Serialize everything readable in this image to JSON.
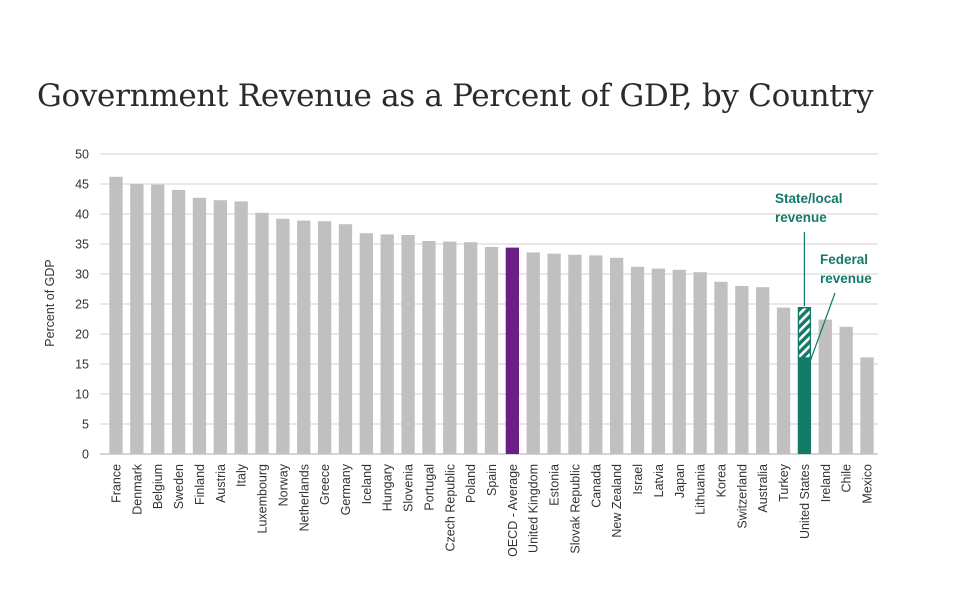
{
  "chart_data": {
    "type": "bar",
    "title": "Government Revenue as a Percent of GDP, by Country",
    "ylabel": "Percent of GDP",
    "xlabel": "",
    "ylim": [
      0,
      50
    ],
    "yticks": [
      0,
      5,
      10,
      15,
      20,
      25,
      30,
      35,
      40,
      45,
      50
    ],
    "grid": true,
    "legend": "none",
    "categories": [
      "France",
      "Denmark",
      "Belgium",
      "Sweden",
      "Finland",
      "Austria",
      "Italy",
      "Luxembourg",
      "Norway",
      "Netherlands",
      "Greece",
      "Germany",
      "Iceland",
      "Hungary",
      "Slovenia",
      "Portugal",
      "Czech Republic",
      "Poland",
      "Spain",
      "OECD - Average",
      "United Kingdom",
      "Estonia",
      "Slovak Republic",
      "Canada",
      "New Zealand",
      "Israel",
      "Latvia",
      "Japan",
      "Lithuania",
      "Korea",
      "Switzerland",
      "Australia",
      "Turkey",
      "United States",
      "Ireland",
      "Chile",
      "Mexico"
    ],
    "values": [
      46.2,
      45.0,
      44.9,
      44.0,
      42.7,
      42.3,
      42.1,
      40.2,
      39.2,
      38.9,
      38.8,
      38.3,
      36.8,
      36.6,
      36.5,
      35.5,
      35.4,
      35.3,
      34.5,
      34.4,
      33.6,
      33.4,
      33.2,
      33.1,
      32.7,
      31.2,
      30.9,
      30.7,
      30.3,
      28.7,
      28.0,
      27.8,
      24.4,
      24.5,
      22.4,
      21.2,
      16.1
    ],
    "highlights": {
      "OECD - Average": "#6a1e86",
      "United States": "#137a68"
    },
    "us_breakdown": {
      "federal": 16.0,
      "state_local": 8.5
    },
    "annotations": [
      {
        "lines": [
          "State/local",
          "revenue"
        ],
        "target": "state_local"
      },
      {
        "lines": [
          "Federal",
          "revenue"
        ],
        "target": "federal"
      }
    ],
    "colors": {
      "bar": "#c0c0c0",
      "grid": "#d9d9d9",
      "axis": "#bbbbbb",
      "oecd": "#6a1e86",
      "us": "#137a68"
    }
  }
}
